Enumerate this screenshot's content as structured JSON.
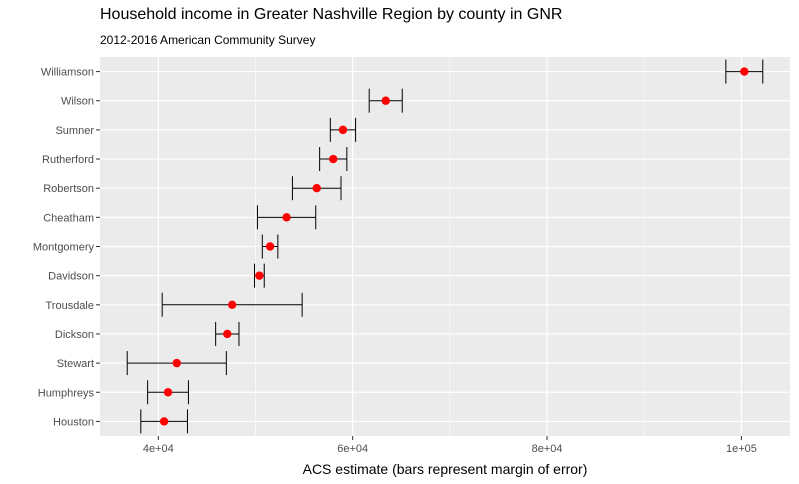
{
  "title": "Household income in Greater Nashville Region by county in GNR",
  "subtitle": "2012-2016 American Community Survey",
  "colors": {
    "panel": "#ebebeb",
    "grid": "#ffffff",
    "point": "#ff0000",
    "errorbar": "#000000",
    "tick_text": "#4d4d4d"
  },
  "chart_data": {
    "type": "scatter",
    "orientation": "horizontal-errorbar",
    "xlabel": "ACS estimate (bars represent margin of error)",
    "ylabel": "",
    "xlim": [
      34000,
      105000
    ],
    "x_ticks": [
      40000,
      60000,
      80000,
      100000
    ],
    "x_tick_labels": [
      "4e+04",
      "6e+04",
      "8e+04",
      "1e+05"
    ],
    "grid": true,
    "legend": "none",
    "categories": [
      "Williamson",
      "Wilson",
      "Sumner",
      "Rutherford",
      "Robertson",
      "Cheatham",
      "Montgomery",
      "Davidson",
      "Trousdale",
      "Dickson",
      "Stewart",
      "Humphreys",
      "Houston"
    ],
    "estimate": [
      100300,
      63400,
      59000,
      58000,
      56300,
      53200,
      51500,
      50400,
      47600,
      47100,
      41900,
      41000,
      40600
    ],
    "moe": [
      1900,
      1700,
      1300,
      1400,
      2500,
      3000,
      800,
      500,
      7200,
      1200,
      5100,
      2100,
      2400
    ]
  }
}
